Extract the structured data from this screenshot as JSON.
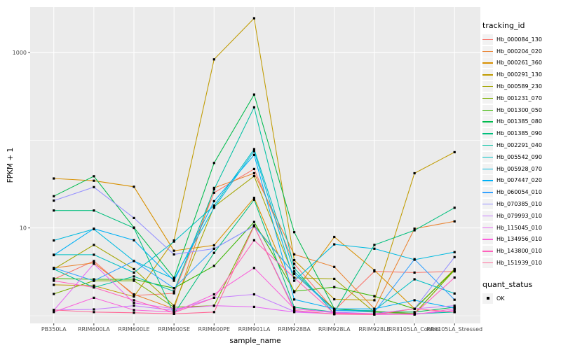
{
  "figure": {
    "panel_bg": "#EBEBEB",
    "grid_color": "#FFFFFF",
    "key_bg": "#F2F2F2",
    "tick_color": "#333333",
    "tick_label_color": "#4D4D4D",
    "marker_color": "#000000"
  },
  "chart_data": {
    "type": "line",
    "title": "",
    "xlabel": "sample_name",
    "ylabel": "FPKM + 1",
    "yscale": "log10",
    "ylim": [
      1,
      3300
    ],
    "grid": true,
    "legend_position": "right",
    "ytick_labels": [
      "1000",
      "10"
    ],
    "ytick_values": [
      1000,
      10
    ],
    "minor_grid_values": [
      100,
      1
    ],
    "categories": [
      "PB350LA",
      "RRIM600LA",
      "RRIM600LE",
      "RRIM600SE",
      "RRIM600PE",
      "RRIM901LA",
      "RRIM928BA",
      "RRIM928LA",
      "RRIM928LE",
      "RRII105LA_Control",
      "RRII105LA_Stressed"
    ],
    "legend_title": "tracking_id",
    "marker": {
      "shape": "square",
      "size": 3.2
    },
    "series": [
      {
        "name": "Hb_000084_130",
        "color": "#F8766D",
        "values": [
          2.6,
          4.2,
          1.7,
          1.8,
          25.2,
          47,
          3.9,
          1.15,
          3.2,
          3.1,
          3.2
        ]
      },
      {
        "name": "Hb_000204_020",
        "color": "#EA8331",
        "values": [
          3.5,
          4.0,
          1.75,
          1.2,
          28.6,
          42,
          5.0,
          3.6,
          1.2,
          9.8,
          11.9
        ]
      },
      {
        "name": "Hb_000261_360",
        "color": "#D89000",
        "values": [
          36.6,
          34.5,
          29.5,
          5.5,
          6.35,
          22,
          1.85,
          7.9,
          3.3,
          1.2,
          3.4
        ]
      },
      {
        "name": "Hb_000291_130",
        "color": "#C09B00",
        "values": [
          2.25,
          2.2,
          1.65,
          7.2,
          835,
          2455,
          4.3,
          1.54,
          1.5,
          42,
          73
        ]
      },
      {
        "name": "Hb_000589_230",
        "color": "#A3A500",
        "values": [
          3.4,
          6.4,
          3.4,
          1.3,
          17.5,
          39,
          2.7,
          2.63,
          1.1,
          1.06,
          3.3
        ]
      },
      {
        "name": "Hb_001231_070",
        "color": "#7CAE00",
        "values": [
          1.77,
          2.5,
          2.5,
          1.25,
          1.3,
          10.7,
          3.0,
          1.2,
          1.12,
          1.05,
          3.35
        ]
      },
      {
        "name": "Hb_001300_050",
        "color": "#39B600",
        "values": [
          2.65,
          2.6,
          2.6,
          2.06,
          3.7,
          11.7,
          1.9,
          2.12,
          1.67,
          1.2,
          3.35
        ]
      },
      {
        "name": "Hb_001385_080",
        "color": "#00BB4E",
        "values": [
          23,
          38.8,
          10.1,
          2.7,
          55,
          331,
          8.95,
          1.2,
          1.1,
          1.1,
          1.25
        ]
      },
      {
        "name": "Hb_001385_090",
        "color": "#00BF7D",
        "values": [
          15.8,
          15.8,
          10,
          1.05,
          5.2,
          21,
          1.25,
          1.1,
          6.4,
          9.4,
          17
        ]
      },
      {
        "name": "Hb_002291_040",
        "color": "#00C1A3",
        "values": [
          3.4,
          2.1,
          2.8,
          1.9,
          27.5,
          237,
          3.5,
          1.05,
          1.05,
          1.05,
          1.1
        ]
      },
      {
        "name": "Hb_005542_090",
        "color": "#00BFC4",
        "values": [
          4.95,
          4.95,
          3.1,
          7.0,
          18,
          79,
          3.2,
          1.15,
          1.15,
          2.6,
          1.79
        ]
      },
      {
        "name": "Hb_005928_070",
        "color": "#00BAE0",
        "values": [
          7.2,
          9.7,
          4.2,
          2.63,
          17,
          75,
          2.5,
          6.5,
          5.8,
          4.35,
          5.3
        ]
      },
      {
        "name": "Hb_007447_020",
        "color": "#00B0F6",
        "values": [
          4.9,
          9.8,
          7.25,
          2.5,
          20.2,
          68,
          1.53,
          1.2,
          1.2,
          1.5,
          1.22
        ]
      },
      {
        "name": "Hb_060054_010",
        "color": "#35A2FF",
        "values": [
          3.5,
          2.5,
          4.2,
          2.06,
          5.8,
          10.5,
          3.0,
          1.15,
          1.1,
          4.4,
          1.52
        ]
      },
      {
        "name": "Hb_070385_010",
        "color": "#9590FF",
        "values": [
          20.5,
          29.2,
          13,
          5.0,
          5.8,
          10.5,
          1.2,
          1.1,
          1.05,
          1.2,
          4.65
        ]
      },
      {
        "name": "Hb_079993_010",
        "color": "#C77CFF",
        "values": [
          1.16,
          1.18,
          1.3,
          1.15,
          1.6,
          1.75,
          1.12,
          1.05,
          1.05,
          1.2,
          1.3
        ]
      },
      {
        "name": "Hb_115045_010",
        "color": "#E76BF3",
        "values": [
          1.15,
          3.9,
          1.4,
          1.2,
          1.3,
          1.26,
          1.1,
          1.05,
          1.03,
          1.04,
          1.15
        ]
      },
      {
        "name": "Hb_134956_010",
        "color": "#FA62DB",
        "values": [
          1.1,
          1.6,
          1.16,
          1.1,
          1.75,
          3.5,
          1.2,
          1.08,
          1.05,
          1.03,
          1.2
        ]
      },
      {
        "name": "Hb_143800_010",
        "color": "#FF62BC",
        "values": [
          2.5,
          2.1,
          1.5,
          1.08,
          1.6,
          7.25,
          2.7,
          1.06,
          1.04,
          1.05,
          2.72
        ]
      },
      {
        "name": "Hb_151939_010",
        "color": "#FF6A98",
        "values": [
          1.16,
          1.1,
          1.08,
          1.05,
          1.1,
          10.5,
          1.15,
          1.04,
          1.03,
          1.2,
          1.1
        ]
      }
    ],
    "quant_status": {
      "title": "quant_status",
      "items": [
        {
          "label": "OK"
        }
      ]
    }
  }
}
